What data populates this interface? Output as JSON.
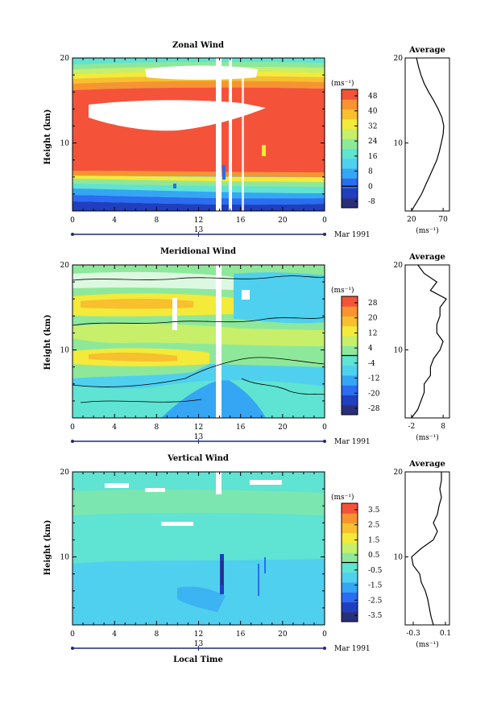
{
  "chart_data": [
    {
      "type": "heatmap",
      "title": "Zonal Wind",
      "ylabel": "Height (km)",
      "x_ticks": [
        "0",
        "4",
        "8",
        "12",
        "16",
        "20",
        "0"
      ],
      "y_ticks": [
        "20",
        "10"
      ],
      "date_labels": [
        "13"
      ],
      "month_label": "Mar 1991",
      "colorbar": {
        "unit": "(ms⁻¹)",
        "ticks": [
          "48",
          "40",
          "32",
          "24",
          "16",
          "8",
          "0",
          "-8"
        ],
        "values": [
          -8,
          0,
          8,
          16,
          24,
          32,
          40,
          48
        ]
      },
      "profile": {
        "title": "Average",
        "xticks": [
          "20",
          "70"
        ],
        "xlabel": "(ms⁻¹)",
        "yticks": [
          "20",
          "10"
        ],
        "xlim": [
          10,
          80
        ],
        "height_km": [
          2,
          3,
          4,
          5,
          6,
          7,
          8,
          9,
          10,
          11,
          12,
          13,
          14,
          15,
          16,
          17,
          18,
          19,
          20
        ],
        "values": [
          20,
          28,
          36,
          42,
          48,
          54,
          60,
          64,
          67,
          70,
          71,
          68,
          62,
          55,
          47,
          40,
          35,
          31,
          28
        ]
      }
    },
    {
      "type": "heatmap",
      "title": "Meridional Wind",
      "ylabel": "Height (km)",
      "x_ticks": [
        "0",
        "4",
        "8",
        "12",
        "16",
        "20",
        "0"
      ],
      "y_ticks": [
        "20",
        "10"
      ],
      "date_labels": [
        "13"
      ],
      "month_label": "Mar 1991",
      "colorbar": {
        "unit": "(ms⁻¹)",
        "ticks": [
          "28",
          "20",
          "12",
          "4",
          "-4",
          "-12",
          "-20",
          "-28"
        ],
        "values": [
          -28,
          -20,
          -12,
          -4,
          4,
          12,
          20,
          28
        ]
      },
      "profile": {
        "title": "Average",
        "xticks": [
          "-2",
          "8"
        ],
        "xlabel": "(ms⁻¹)",
        "yticks": [
          "20",
          "10"
        ],
        "xlim": [
          -4,
          10
        ],
        "height_km": [
          2,
          3,
          4,
          5,
          6,
          7,
          8,
          9,
          10,
          11,
          12,
          13,
          14,
          15,
          16,
          17,
          18,
          19,
          20
        ],
        "values": [
          -2,
          0,
          1,
          2,
          2,
          4,
          4,
          5,
          7,
          8,
          6,
          6,
          7,
          7,
          9,
          4,
          6,
          2,
          0
        ]
      }
    },
    {
      "type": "heatmap",
      "title": "Vertical Wind",
      "ylabel": "Height (km)",
      "xlabel": "Local Time",
      "x_ticks": [
        "0",
        "4",
        "8",
        "12",
        "16",
        "20",
        "0"
      ],
      "y_ticks": [
        "20",
        "10"
      ],
      "date_labels": [
        "13"
      ],
      "month_label": "Mar 1991",
      "colorbar": {
        "unit": "(ms⁻¹)",
        "ticks": [
          "3.5",
          "2.5",
          "1.5",
          "0.5",
          "-0.5",
          "-1.5",
          "-2.5",
          "-3.5"
        ],
        "values": [
          -3.5,
          -2.5,
          -1.5,
          -0.5,
          0.5,
          1.5,
          2.5,
          3.5
        ]
      },
      "profile": {
        "title": "Average",
        "xticks": [
          "-0.3",
          "0.1"
        ],
        "xlabel": "(ms⁻¹)",
        "yticks": [
          "20",
          "10"
        ],
        "xlim": [
          -0.4,
          0.15
        ],
        "height_km": [
          2,
          3,
          4,
          5,
          6,
          7,
          8,
          9,
          10,
          11,
          12,
          13,
          14,
          15,
          16,
          17,
          18,
          19,
          20
        ],
        "values": [
          -0.05,
          -0.08,
          -0.1,
          -0.12,
          -0.15,
          -0.2,
          -0.22,
          -0.3,
          -0.32,
          -0.2,
          -0.05,
          0.0,
          -0.05,
          0.0,
          0.02,
          0.05,
          0.03,
          0.05,
          0.05
        ]
      }
    }
  ],
  "colors": {
    "palette": [
      "#2a2f7a",
      "#1f3fbf",
      "#2b6cf0",
      "#35a6f4",
      "#4fd0ef",
      "#5fe3d2",
      "#8ee89a",
      "#c7ef6a",
      "#f3ea3a",
      "#f8bf2e",
      "#f79430",
      "#f4533a"
    ]
  }
}
